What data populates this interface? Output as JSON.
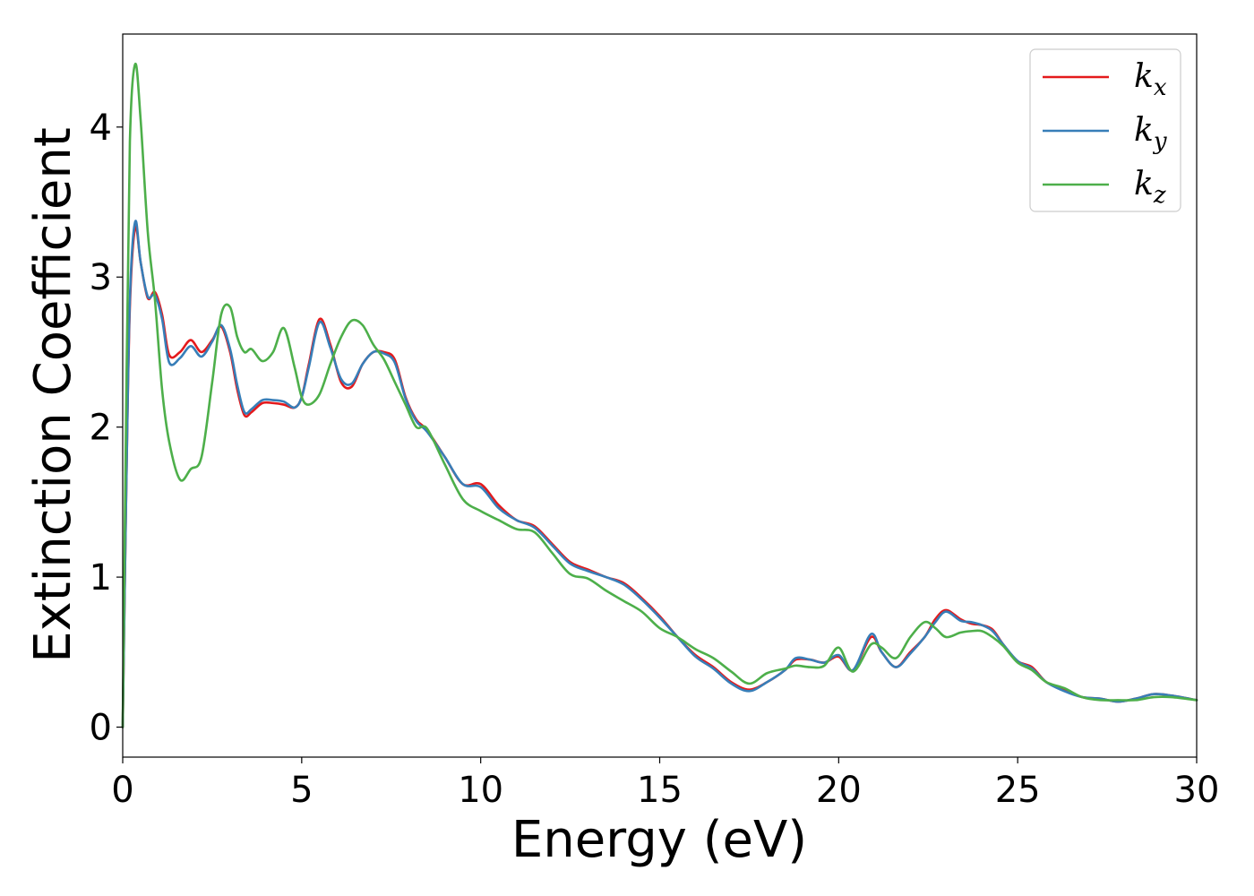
{
  "chart_data": {
    "type": "line",
    "xlabel": "Energy (eV)",
    "ylabel": "Extinction Coefficient",
    "xlim": [
      0,
      30
    ],
    "ylim": [
      -0.2,
      4.62
    ],
    "xticks": [
      0,
      5,
      10,
      15,
      20,
      25,
      30
    ],
    "xtick_labels": [
      "0",
      "5",
      "10",
      "15",
      "20",
      "25",
      "30"
    ],
    "yticks": [
      0,
      1,
      2,
      3,
      4
    ],
    "ytick_labels": [
      "0",
      "1",
      "2",
      "3",
      "4"
    ],
    "grid": false,
    "legend_position": "top-right",
    "series": [
      {
        "name": "k_x",
        "label_base": "k",
        "label_sub": "x",
        "color": "#e41a1c",
        "x": [
          0,
          0.1,
          0.2,
          0.35,
          0.5,
          0.7,
          0.9,
          1.1,
          1.3,
          1.6,
          1.9,
          2.2,
          2.5,
          2.75,
          3.0,
          3.2,
          3.4,
          3.6,
          3.9,
          4.2,
          4.5,
          4.8,
          5.0,
          5.2,
          5.5,
          5.8,
          6.1,
          6.4,
          6.7,
          7.0,
          7.3,
          7.6,
          7.9,
          8.2,
          8.5,
          9.0,
          9.5,
          10.0,
          10.5,
          11.0,
          11.5,
          12.0,
          12.5,
          13.0,
          13.5,
          14.0,
          14.5,
          15.0,
          15.5,
          16.0,
          16.5,
          17.0,
          17.5,
          18.0,
          18.5,
          18.8,
          19.2,
          19.6,
          20.0,
          20.4,
          20.9,
          21.2,
          21.6,
          22.0,
          22.4,
          22.7,
          23.0,
          23.4,
          23.7,
          24.0,
          24.3,
          24.6,
          25.0,
          25.4,
          25.8,
          26.3,
          26.8,
          27.3,
          27.8,
          28.3,
          28.8,
          29.3,
          30.0
        ],
        "y": [
          0,
          1.6,
          2.8,
          3.33,
          3.1,
          2.86,
          2.9,
          2.75,
          2.48,
          2.5,
          2.58,
          2.5,
          2.58,
          2.67,
          2.5,
          2.25,
          2.08,
          2.1,
          2.16,
          2.16,
          2.15,
          2.13,
          2.2,
          2.42,
          2.72,
          2.55,
          2.3,
          2.27,
          2.42,
          2.5,
          2.5,
          2.45,
          2.2,
          2.05,
          1.98,
          1.8,
          1.62,
          1.62,
          1.48,
          1.38,
          1.34,
          1.22,
          1.1,
          1.05,
          1.0,
          0.96,
          0.86,
          0.74,
          0.6,
          0.48,
          0.4,
          0.3,
          0.25,
          0.3,
          0.38,
          0.45,
          0.45,
          0.43,
          0.47,
          0.38,
          0.6,
          0.5,
          0.4,
          0.5,
          0.6,
          0.72,
          0.78,
          0.72,
          0.69,
          0.68,
          0.65,
          0.55,
          0.44,
          0.4,
          0.3,
          0.25,
          0.2,
          0.19,
          0.17,
          0.19,
          0.22,
          0.21,
          0.18
        ]
      },
      {
        "name": "k_y",
        "label_base": "k",
        "label_sub": "y",
        "color": "#377eb8",
        "x": [
          0,
          0.1,
          0.2,
          0.35,
          0.5,
          0.7,
          0.9,
          1.1,
          1.3,
          1.6,
          1.9,
          2.2,
          2.5,
          2.75,
          3.0,
          3.2,
          3.4,
          3.6,
          3.9,
          4.2,
          4.5,
          4.8,
          5.0,
          5.2,
          5.5,
          5.8,
          6.1,
          6.4,
          6.7,
          7.0,
          7.3,
          7.6,
          7.9,
          8.2,
          8.5,
          9.0,
          9.5,
          10.0,
          10.5,
          11.0,
          11.5,
          12.0,
          12.5,
          13.0,
          13.5,
          14.0,
          14.5,
          15.0,
          15.5,
          16.0,
          16.5,
          17.0,
          17.5,
          18.0,
          18.5,
          18.8,
          19.2,
          19.6,
          20.0,
          20.4,
          20.9,
          21.2,
          21.6,
          22.0,
          22.4,
          22.7,
          23.0,
          23.4,
          23.7,
          24.0,
          24.3,
          24.6,
          25.0,
          25.4,
          25.8,
          26.3,
          26.8,
          27.3,
          27.8,
          28.3,
          28.8,
          29.3,
          30.0
        ],
        "y": [
          0,
          1.6,
          2.85,
          3.37,
          3.1,
          2.87,
          2.88,
          2.72,
          2.43,
          2.46,
          2.54,
          2.47,
          2.57,
          2.68,
          2.52,
          2.28,
          2.1,
          2.12,
          2.18,
          2.18,
          2.17,
          2.13,
          2.2,
          2.4,
          2.7,
          2.53,
          2.32,
          2.29,
          2.42,
          2.5,
          2.49,
          2.43,
          2.19,
          2.04,
          1.97,
          1.8,
          1.62,
          1.6,
          1.46,
          1.38,
          1.33,
          1.21,
          1.09,
          1.04,
          1.0,
          0.95,
          0.85,
          0.73,
          0.6,
          0.47,
          0.39,
          0.29,
          0.24,
          0.3,
          0.38,
          0.46,
          0.45,
          0.43,
          0.48,
          0.38,
          0.62,
          0.5,
          0.4,
          0.49,
          0.6,
          0.7,
          0.77,
          0.71,
          0.7,
          0.68,
          0.64,
          0.55,
          0.44,
          0.39,
          0.3,
          0.24,
          0.2,
          0.19,
          0.17,
          0.19,
          0.22,
          0.21,
          0.18
        ]
      },
      {
        "name": "k_z",
        "label_base": "k",
        "label_sub": "z",
        "color": "#4daf4a",
        "x": [
          0,
          0.1,
          0.2,
          0.35,
          0.5,
          0.7,
          0.9,
          1.1,
          1.3,
          1.6,
          1.9,
          2.2,
          2.5,
          2.75,
          3.0,
          3.2,
          3.4,
          3.6,
          3.9,
          4.2,
          4.5,
          4.8,
          5.0,
          5.2,
          5.5,
          5.8,
          6.1,
          6.4,
          6.7,
          7.0,
          7.3,
          7.6,
          7.9,
          8.2,
          8.5,
          9.0,
          9.5,
          10.0,
          10.5,
          11.0,
          11.5,
          12.0,
          12.5,
          13.0,
          13.5,
          14.0,
          14.5,
          15.0,
          15.5,
          16.0,
          16.5,
          17.0,
          17.5,
          18.0,
          18.5,
          18.8,
          19.2,
          19.6,
          20.0,
          20.4,
          20.9,
          21.2,
          21.6,
          22.0,
          22.4,
          22.7,
          23.0,
          23.4,
          23.7,
          24.0,
          24.3,
          24.6,
          25.0,
          25.4,
          25.8,
          26.3,
          26.8,
          27.3,
          27.8,
          28.3,
          28.8,
          29.3,
          30.0
        ],
        "y": [
          0,
          2.2,
          3.9,
          4.42,
          4.05,
          3.3,
          2.85,
          2.25,
          1.9,
          1.65,
          1.72,
          1.8,
          2.3,
          2.75,
          2.8,
          2.6,
          2.5,
          2.52,
          2.44,
          2.5,
          2.66,
          2.4,
          2.2,
          2.15,
          2.22,
          2.42,
          2.6,
          2.71,
          2.68,
          2.55,
          2.45,
          2.3,
          2.15,
          2.0,
          1.99,
          1.75,
          1.52,
          1.44,
          1.38,
          1.32,
          1.3,
          1.16,
          1.02,
          0.99,
          0.91,
          0.84,
          0.77,
          0.66,
          0.6,
          0.52,
          0.46,
          0.37,
          0.29,
          0.36,
          0.39,
          0.41,
          0.4,
          0.41,
          0.53,
          0.37,
          0.55,
          0.53,
          0.46,
          0.6,
          0.7,
          0.66,
          0.6,
          0.63,
          0.64,
          0.64,
          0.6,
          0.54,
          0.43,
          0.38,
          0.3,
          0.26,
          0.2,
          0.18,
          0.18,
          0.18,
          0.2,
          0.2,
          0.18
        ]
      }
    ]
  }
}
